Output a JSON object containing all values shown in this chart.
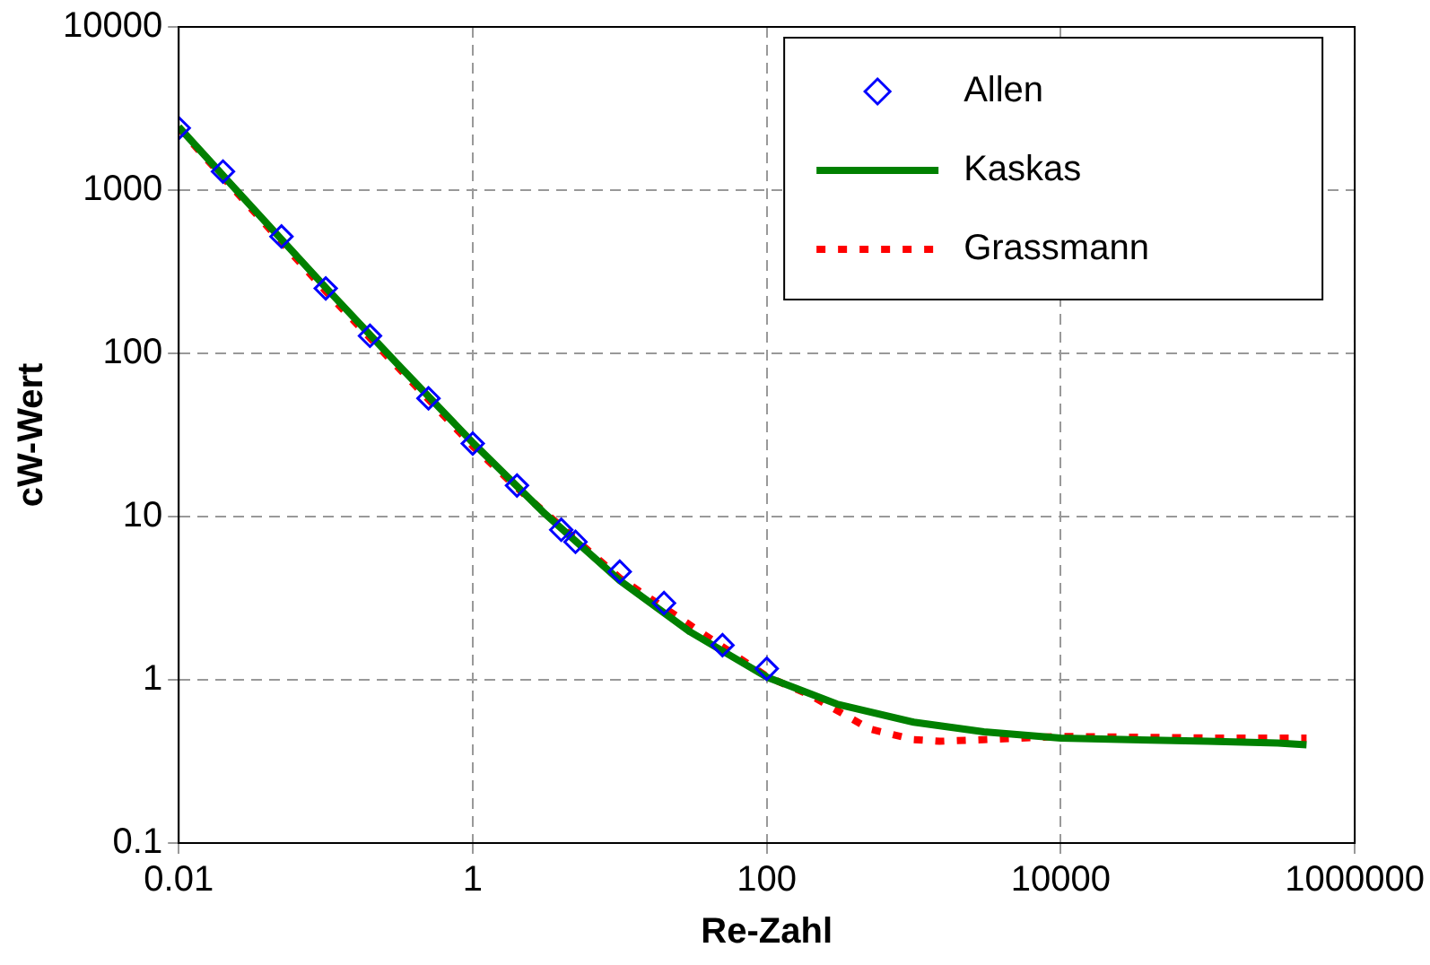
{
  "chart_data": {
    "type": "line",
    "xlabel": "Re-Zahl",
    "ylabel": "cW-Wert",
    "log": "xy",
    "xlim": [
      0.01,
      1000000
    ],
    "xticks": [
      0.01,
      1,
      100,
      10000,
      1000000
    ],
    "ylim": [
      0.1,
      10000
    ],
    "yticks": [
      0.1,
      1,
      10,
      100,
      1000,
      10000
    ],
    "grid": true,
    "legend": "top right",
    "series": [
      {
        "name": "Allen",
        "type": "scatter",
        "marker": "diamond",
        "color": "#0000ff",
        "x": [
          0.01,
          0.02,
          0.05,
          0.1,
          0.2,
          0.5,
          1,
          2,
          4,
          5,
          10,
          20,
          50,
          100
        ],
        "values": [
          2400,
          1300,
          520,
          250,
          128,
          53,
          28,
          15.5,
          8.3,
          7,
          4.6,
          2.95,
          1.63,
          1.17
        ]
      },
      {
        "name": "Kaskas",
        "type": "line",
        "marker": "none",
        "line_style": "solid",
        "color": "#008000",
        "x": [
          0.01,
          0.03,
          0.1,
          0.3,
          1,
          3,
          10,
          30,
          100,
          300,
          1000,
          3000,
          10000,
          30000,
          100000,
          300000,
          470000
        ],
        "values": [
          2440,
          824,
          253,
          88,
          28.4,
          10.7,
          4.06,
          1.97,
          1.04,
          0.71,
          0.55,
          0.48,
          0.44,
          0.43,
          0.42,
          0.41,
          0.4
        ]
      },
      {
        "name": "Grassmann",
        "type": "line",
        "marker": "none",
        "line_style": "dotted",
        "color": "#ff0000",
        "x": [
          0.01,
          0.1,
          1,
          2,
          10,
          100,
          200,
          500,
          1000,
          1500,
          3000,
          10000,
          100000,
          470000
        ],
        "values": [
          2400,
          240,
          27,
          15,
          4.2,
          1.05,
          0.8,
          0.5,
          0.43,
          0.42,
          0.43,
          0.45,
          0.44,
          0.44
        ]
      }
    ]
  }
}
